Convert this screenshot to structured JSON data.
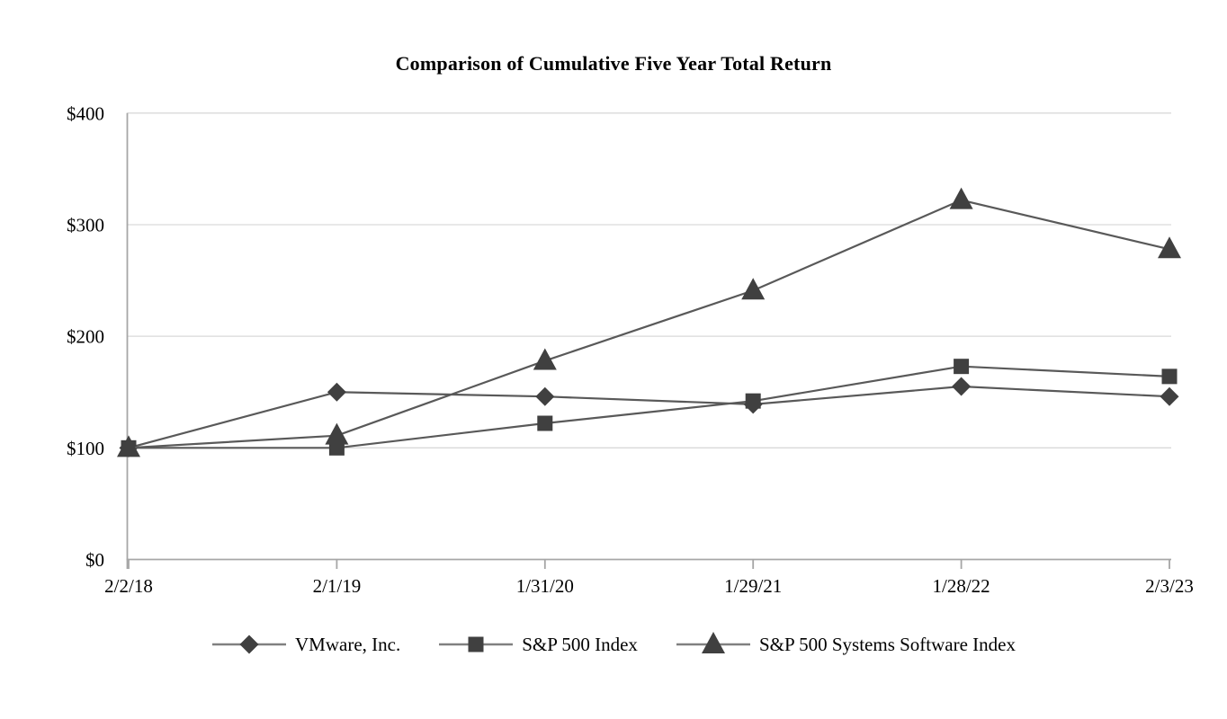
{
  "chart_data": {
    "type": "line",
    "title": "Comparison of Cumulative Five Year Total Return",
    "categories": [
      "2/2/18",
      "2/1/19",
      "1/31/20",
      "1/29/21",
      "1/28/22",
      "2/3/23"
    ],
    "series": [
      {
        "id": "vmware",
        "name": "VMware, Inc.",
        "marker": "diamond",
        "values": [
          100,
          150,
          146,
          139,
          155,
          146
        ]
      },
      {
        "id": "sp500",
        "name": "S&P 500 Index",
        "marker": "square",
        "values": [
          100,
          100,
          122,
          142,
          173,
          164
        ]
      },
      {
        "id": "sp500-systems-software",
        "name": "S&P 500 Systems Software Index",
        "marker": "triangle",
        "values": [
          100,
          111,
          178,
          241,
          322,
          278
        ]
      }
    ],
    "xlabel": "",
    "ylabel": "",
    "ylim": [
      0,
      400
    ],
    "y_ticks": [
      {
        "value": 0,
        "label": "$0"
      },
      {
        "value": 100,
        "label": "$100"
      },
      {
        "value": 200,
        "label": "$200"
      },
      {
        "value": 300,
        "label": "$300"
      },
      {
        "value": 400,
        "label": "$400"
      }
    ],
    "grid": "horizontal",
    "legend_position": "bottom",
    "colors": {
      "marker": "#404040",
      "line": "#595959",
      "gridline": "#d9d9d9",
      "axis": "#a6a6a6",
      "legend_line": "#808080",
      "text": "#000000"
    }
  }
}
